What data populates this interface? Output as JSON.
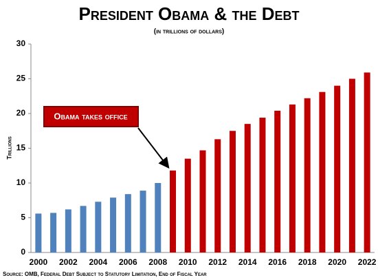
{
  "chart_data": {
    "type": "bar",
    "title": "President Obama & the Debt",
    "subtitle": "(in trillions of dollars)",
    "y_label": "Trillions",
    "annotation": "Obama takes office",
    "source": "Source: OMB, Federal Debt Subject to Statutory Limitation, End of Fiscal Year",
    "categories": [
      "2000",
      null,
      "2002",
      null,
      "2004",
      null,
      "2006",
      null,
      "2008",
      null,
      "2010",
      null,
      "2012",
      null,
      "2014",
      null,
      "2016",
      null,
      "2018",
      null,
      "2020",
      null,
      "2022"
    ],
    "values": [
      5.6,
      5.7,
      6.2,
      6.7,
      7.3,
      7.9,
      8.4,
      8.9,
      10.0,
      11.8,
      13.5,
      14.7,
      16.3,
      17.5,
      18.5,
      19.4,
      20.4,
      21.3,
      22.2,
      23.1,
      24.0,
      25.0,
      25.9
    ],
    "colors": [
      "#4f81bd",
      "#4f81bd",
      "#4f81bd",
      "#4f81bd",
      "#4f81bd",
      "#4f81bd",
      "#4f81bd",
      "#4f81bd",
      "#4f81bd",
      "#c00000",
      "#c00000",
      "#c00000",
      "#c00000",
      "#c00000",
      "#c00000",
      "#c00000",
      "#c00000",
      "#c00000",
      "#c00000",
      "#c00000",
      "#c00000",
      "#c00000",
      "#c00000"
    ],
    "ylim": [
      0,
      30
    ],
    "yticks": [
      0,
      5,
      10,
      15,
      20,
      25,
      30
    ],
    "grid": false
  }
}
